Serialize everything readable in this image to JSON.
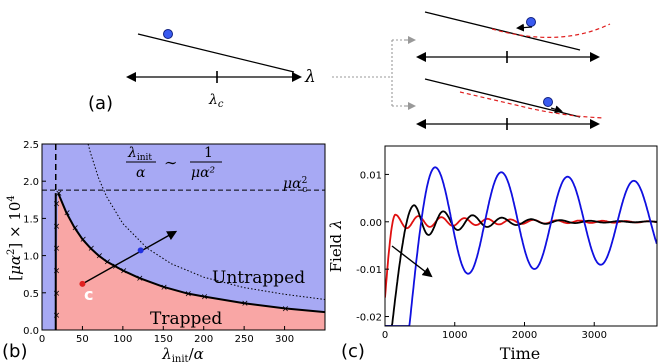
{
  "panel_a": {
    "label": "(a)",
    "axis_symbol": "λ",
    "critical_label": "λ",
    "critical_sub": "c"
  },
  "chart_data": [
    {
      "panel": "(b)",
      "type": "area",
      "xlabel": "λ_init/α",
      "ylabel": "[μα²] × 10⁴",
      "xlim": [
        0,
        350
      ],
      "ylim": [
        0,
        2.5
      ],
      "xticks": [
        "0",
        "50",
        "100",
        "150",
        "200",
        "250",
        "300"
      ],
      "yticks": [
        "0.0",
        "0.5",
        "1.0",
        "1.5",
        "2.0",
        "2.5"
      ],
      "regions": [
        "Untrapped",
        "Trapped"
      ],
      "point_label": "c",
      "annotations": {
        "formula_lhs_num": "λ",
        "formula_lhs_num_sub": "init",
        "formula_lhs_den": "α",
        "formula_sim": "∼",
        "formula_rhs_num": "1",
        "formula_rhs_den": "μα²",
        "critical_line": "μα",
        "critical_line_sub": "c",
        "critical_line_sup": "2"
      },
      "critical_value": 1.88,
      "vertical_line_x": 17,
      "boundary": {
        "x": [
          17,
          20,
          30,
          40,
          50,
          60,
          70,
          80,
          90,
          100,
          120,
          150,
          180,
          200,
          250,
          300,
          350
        ],
        "y": [
          0.0,
          1.84,
          1.58,
          1.38,
          1.22,
          1.1,
          1.0,
          0.92,
          0.86,
          0.8,
          0.7,
          0.58,
          0.49,
          0.45,
          0.36,
          0.29,
          0.24
        ]
      },
      "dotted_curve": {
        "x": [
          57,
          60,
          70,
          80,
          100,
          130,
          160,
          200,
          250,
          300,
          350
        ],
        "y": [
          2.5,
          2.38,
          2.04,
          1.79,
          1.43,
          1.1,
          0.89,
          0.71,
          0.57,
          0.48,
          0.41
        ]
      },
      "trajectory": {
        "from": [
          50,
          0.62
        ],
        "to": [
          165,
          1.32
        ]
      },
      "red_point": [
        50,
        0.62
      ],
      "blue_point": [
        122,
        1.07
      ],
      "colors": {
        "untrapped": "#a7a9f4",
        "trapped": "#f9a6a5"
      }
    },
    {
      "panel": "(c)",
      "type": "line",
      "xlabel": "Time",
      "ylabel": "Field λ",
      "xlim": [
        0,
        3900
      ],
      "ylim": [
        -0.022,
        0.016
      ],
      "xticks": [
        "0",
        "1000",
        "2000",
        "3000"
      ],
      "yticks": [
        "-0.02",
        "-0.01",
        "0.00",
        "0.01"
      ],
      "series": [
        {
          "color": "#e01010",
          "t0": 0,
          "y0": -0.016,
          "ts": 150,
          "amp": 0.0015,
          "decay": 1500,
          "period": 330
        },
        {
          "color": "#000000",
          "t0": 100,
          "y0": -0.022,
          "ts": 420,
          "amp": 0.0035,
          "decay": 900,
          "period": 420
        },
        {
          "color": "#1010e0",
          "t0": 350,
          "y0": -0.022,
          "ts": 720,
          "amp": 0.0115,
          "decay": 10000,
          "period": 950
        }
      ]
    }
  ]
}
